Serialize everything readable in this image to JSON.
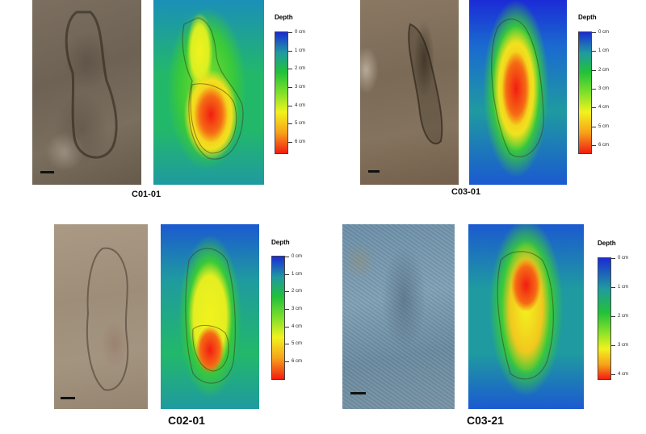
{
  "panels": [
    {
      "label": "C01-01",
      "legend_title": "Depth",
      "legend_ticks": [
        "0 cm",
        "1 cm",
        "2 cm",
        "3 cm",
        "4 cm",
        "5 cm",
        "6 cm"
      ]
    },
    {
      "label": "C03-01",
      "legend_title": "Depth",
      "legend_ticks": [
        "0 cm",
        "1 cm",
        "2 cm",
        "3 cm",
        "4 cm",
        "5 cm",
        "6 cm"
      ]
    },
    {
      "label": "C02-01",
      "legend_title": "Depth",
      "legend_ticks": [
        "0 cm",
        "1 cm",
        "2 cm",
        "3 cm",
        "4 cm",
        "5 cm",
        "6 cm"
      ]
    },
    {
      "label": "C03-21",
      "legend_title": "Depth",
      "legend_ticks": [
        "0 cm",
        "1 cm",
        "2 cm",
        "3 cm",
        "4 cm"
      ]
    }
  ],
  "colors": {
    "depth_scale": [
      "#1b2bd6",
      "#1f9aa0",
      "#22c13a",
      "#7fe02a",
      "#f2f21e",
      "#f7a21a",
      "#f21d12"
    ]
  }
}
